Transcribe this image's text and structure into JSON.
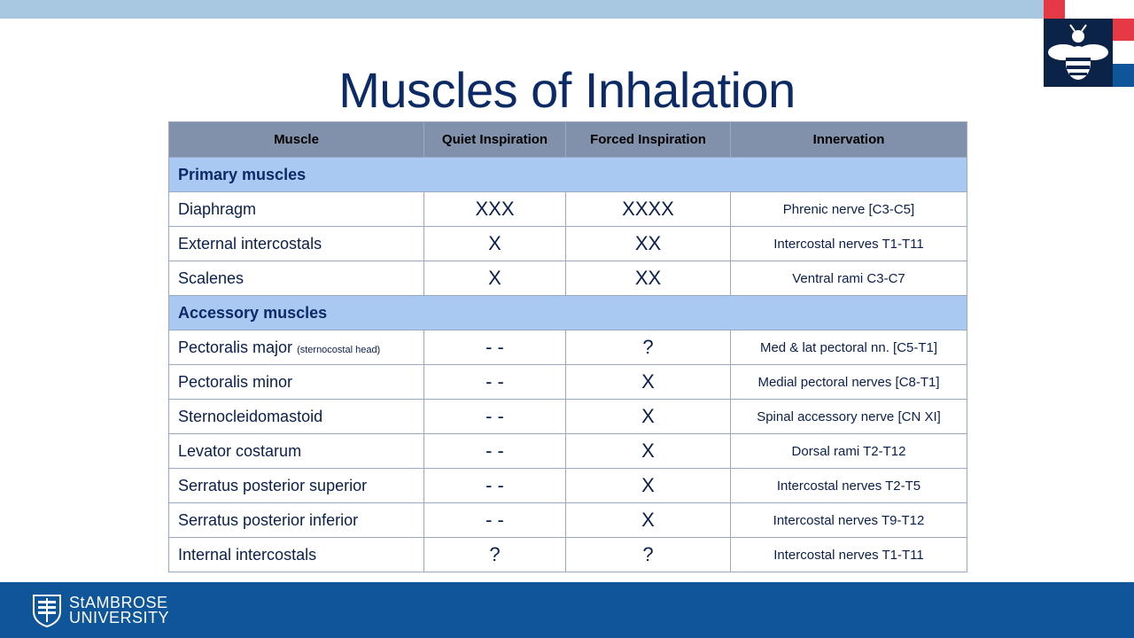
{
  "slide": {
    "title": "Muscles of Inhalation"
  },
  "brand": {
    "university_line1": "StAMBROSE",
    "university_line2": "UNIVERSITY",
    "colors": {
      "navy": "#0b2a66",
      "header_band": "#a8c8e2",
      "footer_band": "#0e5699",
      "table_header": "#8190ab",
      "section_row": "#a9c8f2",
      "logo_red": "#e63946"
    }
  },
  "table": {
    "headers": {
      "muscle": "Muscle",
      "quiet": "Quiet Inspiration",
      "forced": "Forced Inspiration",
      "innervation": "Innervation"
    },
    "primary": {
      "label": "Primary muscles",
      "rows": [
        {
          "name": "Diaphragm",
          "quiet": "XXX",
          "forced": "XXXX",
          "nerve": "Phrenic nerve [C3-C5]"
        },
        {
          "name": "External intercostals",
          "quiet": "X",
          "forced": "XX",
          "nerve": "Intercostal nerves T1-T11"
        },
        {
          "name": "Scalenes",
          "quiet": "X",
          "forced": "XX",
          "nerve": "Ventral rami C3-C7"
        }
      ]
    },
    "accessory": {
      "label": "Accessory muscles",
      "rows": [
        {
          "name": "Pectoralis major",
          "note": "(sternocostal head)",
          "quiet": "- -",
          "forced": "?",
          "nerve": "Med & lat pectoral nn. [C5-T1]"
        },
        {
          "name": "Pectoralis minor",
          "quiet": "- -",
          "forced": "X",
          "nerve": "Medial pectoral nerves [C8-T1]"
        },
        {
          "name": "Sternocleidomastoid",
          "quiet": "- -",
          "forced": "X",
          "nerve": "Spinal accessory nerve [CN XI]"
        },
        {
          "name": "Levator costarum",
          "quiet": "- -",
          "forced": "X",
          "nerve": "Dorsal rami T2-T12"
        },
        {
          "name": "Serratus posterior superior",
          "quiet": "- -",
          "forced": "X",
          "nerve": "Intercostal nerves T2-T5"
        },
        {
          "name": "Serratus posterior inferior",
          "quiet": "- -",
          "forced": "X",
          "nerve": "Intercostal nerves T9-T12"
        },
        {
          "name": "Internal intercostals",
          "quiet": "?",
          "forced": "?",
          "nerve": "Intercostal nerves T1-T11"
        }
      ]
    }
  }
}
